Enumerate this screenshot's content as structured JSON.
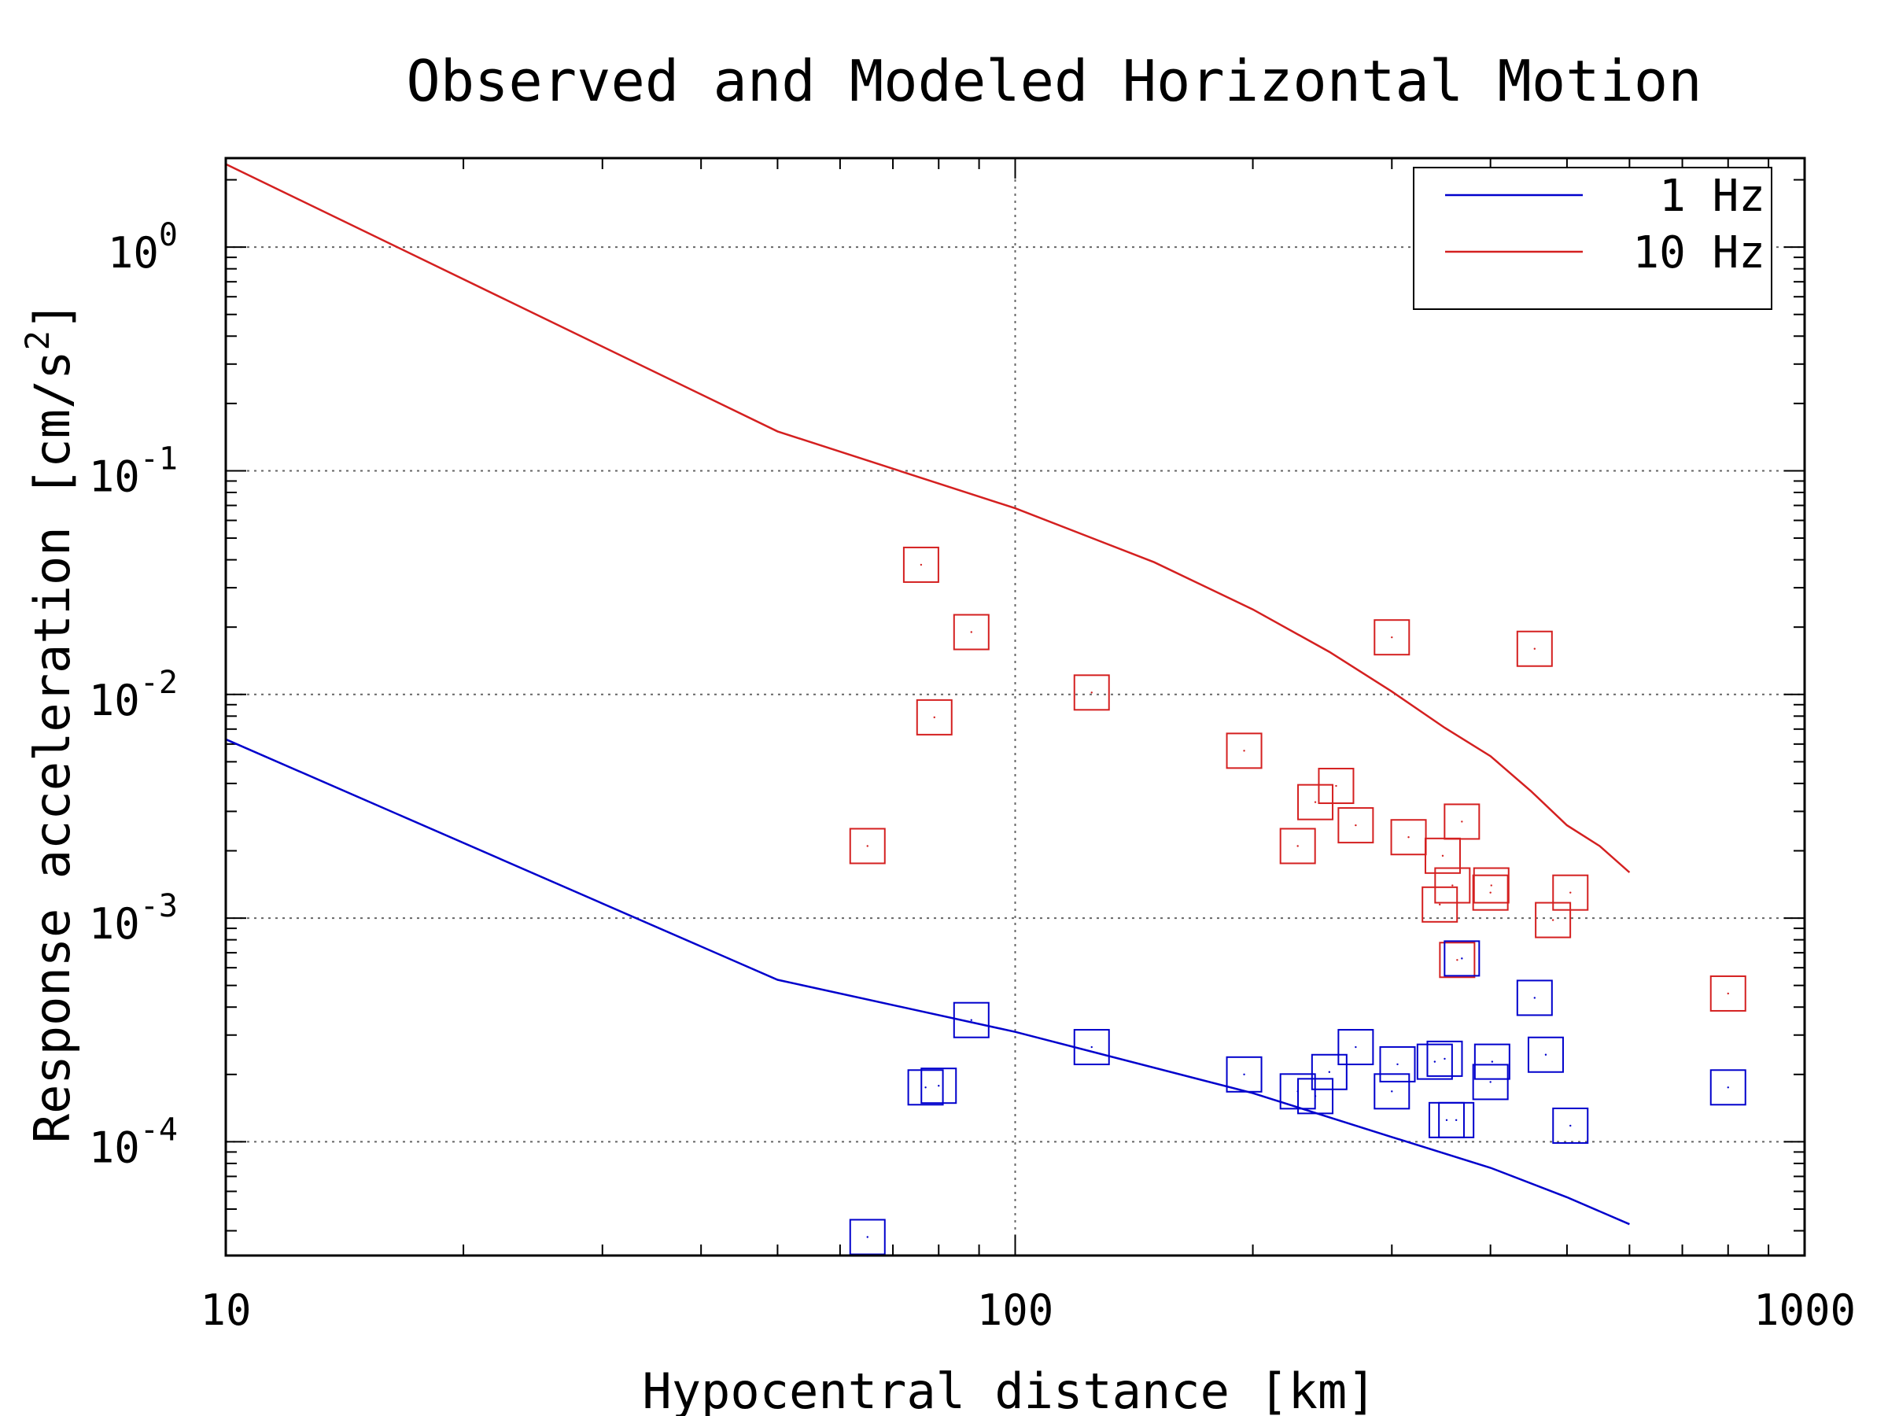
{
  "chart_data": {
    "type": "scatter",
    "title": "Observed and Modeled Horizontal Motion",
    "xlabel": "Hypocentral distance [km]",
    "ylabel_base": "Response acceleration [cm/s",
    "ylabel_sup": "2",
    "ylabel_end": "]",
    "x_scale": "log",
    "y_scale": "log",
    "xlim": [
      10,
      1000
    ],
    "ylim": [
      3.1e-05,
      2.5
    ],
    "x_ticks": [
      {
        "value": 10,
        "label": "10"
      },
      {
        "value": 100,
        "label": "100"
      },
      {
        "value": 1000,
        "label": "1000"
      }
    ],
    "y_ticks": [
      {
        "value": 1,
        "base": "10",
        "exp": "0"
      },
      {
        "value": 0.1,
        "base": "10",
        "exp": "-1"
      },
      {
        "value": 0.01,
        "base": "10",
        "exp": "-2"
      },
      {
        "value": 0.001,
        "base": "10",
        "exp": "-3"
      },
      {
        "value": 0.0001,
        "base": "10",
        "exp": "-4"
      }
    ],
    "grid": true,
    "legend_position": "top-right",
    "series": [
      {
        "name": "1 Hz",
        "kind": "line",
        "color": "#0000cc",
        "x": [
          10,
          50,
          100,
          200,
          300,
          400,
          500,
          600
        ],
        "y": [
          0.0063,
          0.00053,
          0.00031,
          0.000165,
          0.000105,
          7.65e-05,
          5.65e-05,
          4.28e-05
        ]
      },
      {
        "name": "10 Hz",
        "kind": "line",
        "color": "#d42020",
        "x": [
          10,
          50,
          100,
          150,
          200,
          250,
          300,
          350,
          400,
          450,
          500,
          550,
          600
        ],
        "y": [
          2.35,
          0.15,
          0.068,
          0.039,
          0.024,
          0.0155,
          0.0103,
          0.0071,
          0.0053,
          0.0037,
          0.0026,
          0.0021,
          0.0016
        ]
      },
      {
        "kind": "scatter",
        "marker": "square",
        "color": "#d42020",
        "x": [
          65,
          76,
          79,
          88,
          125,
          195,
          228,
          240,
          255,
          270,
          300,
          315,
          345,
          348,
          358,
          363,
          368,
          400,
          401,
          455,
          480,
          505,
          800
        ],
        "y": [
          0.0021,
          0.038,
          0.0079,
          0.019,
          0.0102,
          0.0056,
          0.0021,
          0.0033,
          0.0039,
          0.0026,
          0.018,
          0.0023,
          0.00115,
          0.0019,
          0.0014,
          0.00065,
          0.0027,
          0.0013,
          0.0014,
          0.016,
          0.00098,
          0.0013,
          0.00046
        ]
      },
      {
        "kind": "scatter",
        "marker": "square",
        "color": "#0000cc",
        "x": [
          65,
          77,
          80,
          88,
          125,
          195,
          228,
          240,
          250,
          270,
          300,
          305,
          340,
          350,
          352,
          362,
          368,
          400,
          402,
          455,
          470,
          505,
          800
        ],
        "y": [
          3.75e-05,
          0.000175,
          0.000178,
          0.00035,
          0.000265,
          0.0002,
          0.000168,
          0.00016,
          0.000205,
          0.000265,
          0.000168,
          0.000222,
          0.000228,
          0.000235,
          0.000125,
          0.000125,
          0.00066,
          0.000185,
          0.000228,
          0.00044,
          0.000245,
          0.000118,
          0.000175
        ]
      }
    ]
  }
}
